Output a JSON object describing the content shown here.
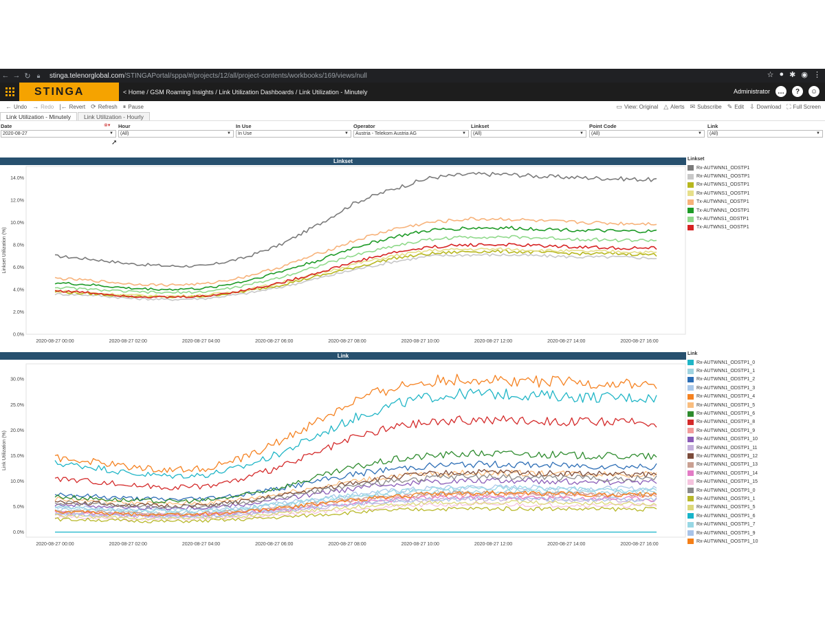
{
  "browser": {
    "url_host": "stinga.telenorglobal.com",
    "url_path": "/STINGAPortal/sppa/#/projects/12/all/project-contents/workbooks/169/views/null"
  },
  "app": {
    "logo": "STINGA",
    "breadcrumb": "< Home / GSM Roaming Insights / Link Utilization Dashboards / Link Utilization - Minutely",
    "user": "Administrator",
    "icons": [
      "chat-icon",
      "help-icon",
      "user-icon"
    ]
  },
  "toolbar": {
    "undo": "Undo",
    "redo": "Redo",
    "revert": "Revert",
    "refresh": "Refresh",
    "pause": "Pause",
    "view": "View: Original",
    "alerts": "Alerts",
    "subscribe": "Subscribe",
    "edit": "Edit",
    "download": "Download",
    "fullscreen": "Full Screen"
  },
  "tabs": [
    {
      "label": "Link Utilization - Minutely",
      "active": true
    },
    {
      "label": "Link Utilization - Hourly",
      "active": false
    }
  ],
  "filters": [
    {
      "label": "Date",
      "value": "2020-08-27"
    },
    {
      "label": "Hour",
      "value": "(All)"
    },
    {
      "label": "In Use",
      "value": "In Use"
    },
    {
      "label": "Operator",
      "value": "Austria - Telekom Austria AG"
    },
    {
      "label": "Linkset",
      "value": "(All)"
    },
    {
      "label": "Point Code",
      "value": "(All)"
    },
    {
      "label": "Link",
      "value": "(All)"
    }
  ],
  "chart_data": [
    {
      "type": "line",
      "title": "Linkset",
      "ylabel": "Linkset Utilization (%)",
      "xlabel": "",
      "ylim": [
        0,
        15
      ],
      "y_ticks": [
        "0.0%",
        "2.0%",
        "4.0%",
        "6.0%",
        "8.0%",
        "10.0%",
        "12.0%",
        "14.0%"
      ],
      "x_ticks": [
        "2020-08-27 00:00",
        "2020-08-27 02:00",
        "2020-08-27 04:00",
        "2020-08-27 06:00",
        "2020-08-27 08:00",
        "2020-08-27 10:00",
        "2020-08-27 12:00",
        "2020-08-27 14:00",
        "2020-08-27 16:00"
      ],
      "x": [
        0,
        1,
        2,
        3,
        4,
        5,
        6,
        7,
        8,
        9,
        10,
        11,
        12,
        13,
        14,
        15,
        16
      ],
      "legend_title": "Linkset",
      "series": [
        {
          "name": "Rx-AUTWNN1_ODSTP1",
          "color": "#7a7a7a",
          "values": [
            7.0,
            6.7,
            6.3,
            6.1,
            6.1,
            6.8,
            8.0,
            9.8,
            11.8,
            13.0,
            14.0,
            14.3,
            14.3,
            14.1,
            14.0,
            13.9,
            13.8
          ]
        },
        {
          "name": "Rx-AUTWNN1_OOSTP1",
          "color": "#c8c8c8",
          "values": [
            3.6,
            3.5,
            3.2,
            3.1,
            3.2,
            3.6,
            4.2,
            5.0,
            5.8,
            6.5,
            7.0,
            7.1,
            7.1,
            7.0,
            6.9,
            6.9,
            6.8
          ]
        },
        {
          "name": "Rx-AUTWNS1_ODSTP1",
          "color": "#b7b71e",
          "values": [
            3.8,
            3.6,
            3.4,
            3.3,
            3.4,
            3.8,
            4.4,
            5.2,
            6.0,
            6.8,
            7.2,
            7.4,
            7.4,
            7.3,
            7.2,
            7.2,
            7.1
          ]
        },
        {
          "name": "Rx-AUTWNS1_OOSTP1",
          "color": "#e6df8a",
          "values": [
            3.9,
            3.7,
            3.5,
            3.4,
            3.5,
            3.9,
            4.6,
            5.4,
            6.3,
            7.0,
            7.5,
            7.6,
            7.6,
            7.5,
            7.4,
            7.4,
            7.3
          ]
        },
        {
          "name": "Tx-AUTWNN1_ODSTP1",
          "color": "#f7b27a",
          "values": [
            5.0,
            4.8,
            4.5,
            4.4,
            4.5,
            5.1,
            6.0,
            7.2,
            8.4,
            9.4,
            10.0,
            10.3,
            10.3,
            10.1,
            10.0,
            9.9,
            9.9
          ]
        },
        {
          "name": "Tx-AUTWNN1_OOSTP1",
          "color": "#1d9a26",
          "values": [
            4.6,
            4.4,
            4.1,
            4.0,
            4.1,
            4.7,
            5.6,
            6.6,
            7.8,
            8.7,
            9.3,
            9.5,
            9.5,
            9.4,
            9.3,
            9.2,
            9.2
          ]
        },
        {
          "name": "Tx-AUTWNS1_ODSTP1",
          "color": "#8fd98a",
          "values": [
            4.2,
            4.0,
            3.8,
            3.7,
            3.8,
            4.3,
            5.1,
            6.1,
            7.1,
            7.9,
            8.5,
            8.7,
            8.7,
            8.6,
            8.5,
            8.4,
            8.4
          ]
        },
        {
          "name": "Tx-AUTWNS1_OOSTP1",
          "color": "#d62222",
          "values": [
            3.9,
            3.7,
            3.4,
            3.3,
            3.4,
            3.9,
            4.6,
            5.5,
            6.5,
            7.3,
            7.8,
            8.0,
            8.0,
            7.9,
            7.8,
            7.7,
            7.7
          ]
        }
      ]
    },
    {
      "type": "line",
      "title": "Link",
      "ylabel": "Link Utilization (%)",
      "xlabel": "",
      "ylim": [
        -1,
        33
      ],
      "y_ticks": [
        "0.0%",
        "5.0%",
        "10.0%",
        "15.0%",
        "20.0%",
        "25.0%",
        "30.0%"
      ],
      "x_ticks": [
        "2020-08-27 00:00",
        "2020-08-27 02:00",
        "2020-08-27 04:00",
        "2020-08-27 06:00",
        "2020-08-27 08:00",
        "2020-08-27 10:00",
        "2020-08-27 12:00",
        "2020-08-27 14:00",
        "2020-08-27 16:00"
      ],
      "x": [
        0,
        1,
        2,
        3,
        4,
        5,
        6,
        7,
        8,
        9,
        10,
        11,
        12,
        13,
        14,
        15,
        16
      ],
      "legend_title": "Link",
      "series": [
        {
          "name": "Rx-AUTWNN1_ODSTP1_0",
          "color": "#1fb5c6",
          "values": [
            13.5,
            12.8,
            11.5,
            11.0,
            11.2,
            12.8,
            15.5,
            19.0,
            22.5,
            25.0,
            26.5,
            27.2,
            27.0,
            26.8,
            26.5,
            26.4,
            26.3
          ]
        },
        {
          "name": "Rx-AUTWNN1_ODSTP1_1",
          "color": "#9fd3e0",
          "values": [
            4.5,
            4.2,
            3.9,
            3.8,
            3.9,
            4.4,
            5.2,
            6.0,
            6.8,
            7.4,
            7.8,
            8.0,
            8.0,
            7.9,
            7.8,
            7.8,
            7.7
          ]
        },
        {
          "name": "Rx-AUTWNN1_ODSTP1_2",
          "color": "#2c6db5",
          "values": [
            7.5,
            7.0,
            6.6,
            6.4,
            6.6,
            7.4,
            8.6,
            10.0,
            11.4,
            12.4,
            13.0,
            13.3,
            13.3,
            13.1,
            13.0,
            12.9,
            12.8
          ]
        },
        {
          "name": "Rx-AUTWNN1_ODSTP1_3",
          "color": "#a9c8ea",
          "values": [
            5.0,
            4.7,
            4.4,
            4.3,
            4.4,
            4.9,
            5.7,
            6.6,
            7.5,
            8.1,
            8.6,
            8.8,
            8.8,
            8.7,
            8.6,
            8.5,
            8.5
          ]
        },
        {
          "name": "Rx-AUTWNN1_ODSTP1_4",
          "color": "#f58221",
          "values": [
            14.5,
            13.8,
            12.8,
            12.2,
            12.5,
            14.5,
            17.8,
            21.8,
            25.8,
            28.4,
            29.6,
            30.0,
            29.8,
            29.5,
            29.2,
            29.0,
            28.8
          ]
        },
        {
          "name": "Rx-AUTWNN1_ODSTP1_5",
          "color": "#f9bd7e",
          "values": [
            6.5,
            6.1,
            5.7,
            5.5,
            5.7,
            6.4,
            7.5,
            8.8,
            10.0,
            10.9,
            11.4,
            11.6,
            11.6,
            11.5,
            11.4,
            11.3,
            11.3
          ]
        },
        {
          "name": "Rx-AUTWNN1_ODSTP1_6",
          "color": "#2e8b2e",
          "values": [
            7.0,
            6.6,
            6.2,
            6.0,
            6.2,
            7.2,
            8.8,
            10.8,
            12.8,
            14.2,
            15.0,
            15.4,
            15.4,
            15.2,
            15.0,
            14.9,
            14.8
          ]
        },
        {
          "name": "Rx-AUTWNN1_ODSTP1_8",
          "color": "#d42a2a",
          "values": [
            10.5,
            10.0,
            9.2,
            8.8,
            9.0,
            10.4,
            12.8,
            15.6,
            18.6,
            20.6,
            21.6,
            22.0,
            22.0,
            21.8,
            21.6,
            21.5,
            21.4
          ]
        },
        {
          "name": "Rx-AUTWNN1_ODSTP1_9",
          "color": "#f29b9b",
          "values": [
            4.0,
            3.8,
            3.5,
            3.4,
            3.5,
            3.9,
            4.6,
            5.4,
            6.2,
            6.8,
            7.2,
            7.4,
            7.4,
            7.3,
            7.2,
            7.2,
            7.1
          ]
        },
        {
          "name": "Rx-AUTWNN1_ODSTP1_10",
          "color": "#8a5cb8",
          "values": [
            5.5,
            5.2,
            4.8,
            4.7,
            4.8,
            5.4,
            6.4,
            7.5,
            8.6,
            9.4,
            9.9,
            10.1,
            10.1,
            10.0,
            9.9,
            9.8,
            9.8
          ]
        },
        {
          "name": "Rx-AUTWNN1_ODSTP1_11",
          "color": "#c4b0dc",
          "values": [
            3.5,
            3.3,
            3.1,
            3.0,
            3.1,
            3.5,
            4.1,
            4.8,
            5.5,
            6.0,
            6.3,
            6.5,
            6.5,
            6.4,
            6.3,
            6.3,
            6.2
          ]
        },
        {
          "name": "Rx-AUTWNN1_ODSTP1_12",
          "color": "#7b4b3a",
          "values": [
            6.0,
            5.7,
            5.3,
            5.1,
            5.3,
            6.0,
            7.1,
            8.4,
            9.8,
            10.8,
            11.4,
            11.7,
            11.7,
            11.5,
            11.4,
            11.3,
            11.2
          ]
        },
        {
          "name": "Rx-AUTWNN1_ODSTP1_13",
          "color": "#c9a092",
          "values": [
            4.2,
            4.0,
            3.7,
            3.6,
            3.7,
            4.1,
            4.8,
            5.6,
            6.4,
            7.0,
            7.4,
            7.6,
            7.6,
            7.5,
            7.4,
            7.3,
            7.3
          ]
        },
        {
          "name": "Rx-AUTWNN1_ODSTP1_14",
          "color": "#e27bc5",
          "values": [
            3.8,
            3.6,
            3.3,
            3.2,
            3.3,
            3.7,
            4.3,
            5.0,
            5.8,
            6.3,
            6.7,
            6.8,
            6.8,
            6.7,
            6.6,
            6.6,
            6.5
          ]
        },
        {
          "name": "Rx-AUTWNN1_ODSTP1_15",
          "color": "#f5c3de",
          "values": [
            3.0,
            2.8,
            2.6,
            2.5,
            2.6,
            2.9,
            3.4,
            4.0,
            4.6,
            5.0,
            5.3,
            5.4,
            5.4,
            5.3,
            5.3,
            5.2,
            5.2
          ]
        },
        {
          "name": "Rx-AUTWNN1_OOSTP1_0",
          "color": "#8a8a8a",
          "values": [
            5.8,
            5.5,
            5.1,
            5.0,
            5.1,
            5.8,
            6.8,
            8.0,
            9.2,
            10.0,
            10.6,
            10.8,
            10.8,
            10.7,
            10.6,
            10.5,
            10.5
          ]
        },
        {
          "name": "Rx-AUTWNN1_OOSTP1_1",
          "color": "#b8b82a",
          "values": [
            2.5,
            2.4,
            2.2,
            2.1,
            2.2,
            2.5,
            2.9,
            3.4,
            3.9,
            4.3,
            4.5,
            4.6,
            4.6,
            4.6,
            4.5,
            4.5,
            4.5
          ]
        },
        {
          "name": "Rx-AUTWNN1_OOSTP1_5",
          "color": "#dcd87a",
          "values": [
            3.2,
            3.0,
            2.8,
            2.7,
            2.8,
            3.1,
            3.7,
            4.3,
            4.9,
            5.4,
            5.7,
            5.8,
            5.8,
            5.7,
            5.7,
            5.6,
            5.6
          ]
        },
        {
          "name": "Rx-AUTWNN1_OOSTP1_6",
          "color": "#17b4c9",
          "values": [
            0,
            0,
            0,
            0,
            0,
            0,
            0,
            0,
            0,
            0,
            0,
            0,
            0,
            0,
            0,
            0,
            0
          ]
        },
        {
          "name": "Rx-AUTWNN1_OOSTP1_7",
          "color": "#97d7e4",
          "values": [
            4.8,
            4.5,
            4.2,
            4.1,
            4.2,
            4.7,
            5.5,
            6.4,
            7.3,
            8.0,
            8.4,
            8.6,
            8.6,
            8.5,
            8.4,
            8.3,
            8.3
          ]
        },
        {
          "name": "Rx-AUTWNN1_OOSTP1_9",
          "color": "#a8c3e8",
          "values": [
            3.6,
            3.4,
            3.2,
            3.1,
            3.2,
            3.6,
            4.2,
            4.9,
            5.6,
            6.1,
            6.4,
            6.6,
            6.6,
            6.5,
            6.4,
            6.4,
            6.3
          ]
        },
        {
          "name": "Rx-AUTWNN1_OOSTP1_10",
          "color": "#f57f17",
          "values": [
            4.0,
            3.8,
            3.5,
            3.4,
            3.5,
            4.0,
            4.7,
            5.5,
            6.4,
            7.0,
            7.4,
            7.6,
            7.6,
            7.5,
            7.4,
            7.4,
            7.3
          ]
        }
      ]
    }
  ]
}
